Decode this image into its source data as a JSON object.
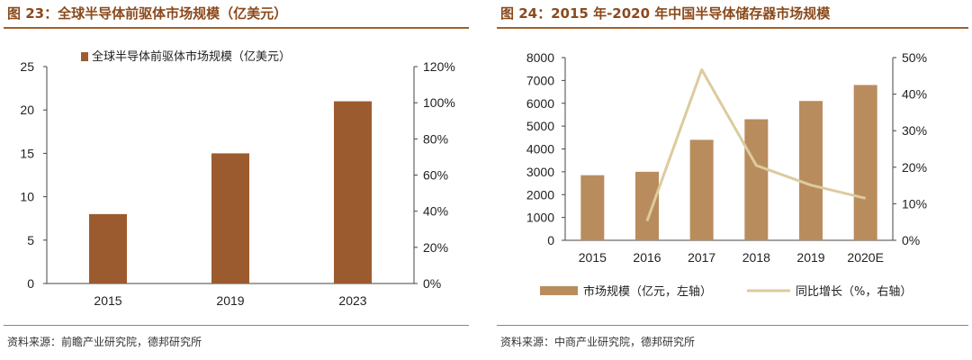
{
  "left": {
    "figure_title": "图 23：全球半导体前驱体市场规模（亿美元）",
    "source": "资料来源：前瞻产业研究院，德邦研究所",
    "colors": {
      "bar": "#9c5b2f",
      "title": "#8b4a1c"
    },
    "chart_data": {
      "type": "bar",
      "categories": [
        "2015",
        "2019",
        "2023"
      ],
      "series": [
        {
          "name": "全球半导体前驱体市场规模（亿美元）",
          "values": [
            8,
            15,
            21
          ]
        }
      ],
      "ylim": [
        0,
        25
      ],
      "yticks": [
        0,
        5,
        10,
        15,
        20,
        25
      ],
      "y2lim": [
        0,
        120
      ],
      "y2ticks": [
        "0%",
        "20%",
        "40%",
        "60%",
        "80%",
        "100%",
        "120%"
      ],
      "legend": "top-left",
      "title": "",
      "xlabel": "",
      "ylabel": ""
    }
  },
  "right": {
    "figure_title": "图 24：2015 年-2020 年中国半导体储存器市场规模",
    "source": "资料来源：中商产业研究院，德邦研究所",
    "colors": {
      "bar": "#b98c5e",
      "line": "#dccb9e",
      "title": "#8b4a1c"
    },
    "chart_data": {
      "type": "bar+line",
      "categories": [
        "2015",
        "2016",
        "2017",
        "2018",
        "2019",
        "2020E"
      ],
      "series": [
        {
          "name": "市场规模（亿元，左轴）",
          "type": "bar",
          "axis": "left",
          "values": [
            2850,
            3000,
            4400,
            5300,
            6100,
            6800
          ]
        },
        {
          "name": "同比增长（%，右轴）",
          "type": "line",
          "axis": "right",
          "values": [
            null,
            5.3,
            46.7,
            20.5,
            15.1,
            11.5
          ]
        }
      ],
      "ylim": [
        0,
        8000
      ],
      "yticks": [
        0,
        1000,
        2000,
        3000,
        4000,
        5000,
        6000,
        7000,
        8000
      ],
      "y2lim": [
        0,
        50
      ],
      "y2ticks": [
        "0%",
        "10%",
        "20%",
        "30%",
        "40%",
        "50%"
      ],
      "legend": "bottom",
      "title": "",
      "xlabel": "",
      "ylabel": ""
    }
  }
}
